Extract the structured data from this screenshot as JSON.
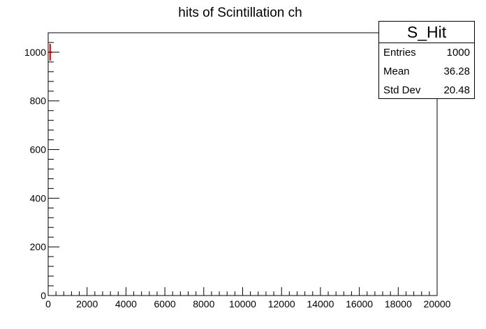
{
  "chart_data": {
    "type": "histogram",
    "title": "hits of Scintillation ch",
    "xlabel": "",
    "ylabel": "",
    "xlim": [
      0,
      20000
    ],
    "ylim": [
      0,
      1080
    ],
    "x_ticks": [
      0,
      2000,
      4000,
      6000,
      8000,
      10000,
      12000,
      14000,
      16000,
      18000,
      20000
    ],
    "y_ticks": [
      0,
      200,
      400,
      600,
      800,
      1000
    ],
    "bins": [
      {
        "x": 100,
        "count": 1000
      }
    ],
    "line_color": "#cc0000",
    "grid": false,
    "legend": "stats box top-right"
  },
  "stats": {
    "name": "S_Hit",
    "rows": [
      {
        "label": "Entries",
        "value": "1000"
      },
      {
        "label": "Mean",
        "value": "36.28"
      },
      {
        "label": "Std Dev",
        "value": "20.48"
      }
    ]
  }
}
